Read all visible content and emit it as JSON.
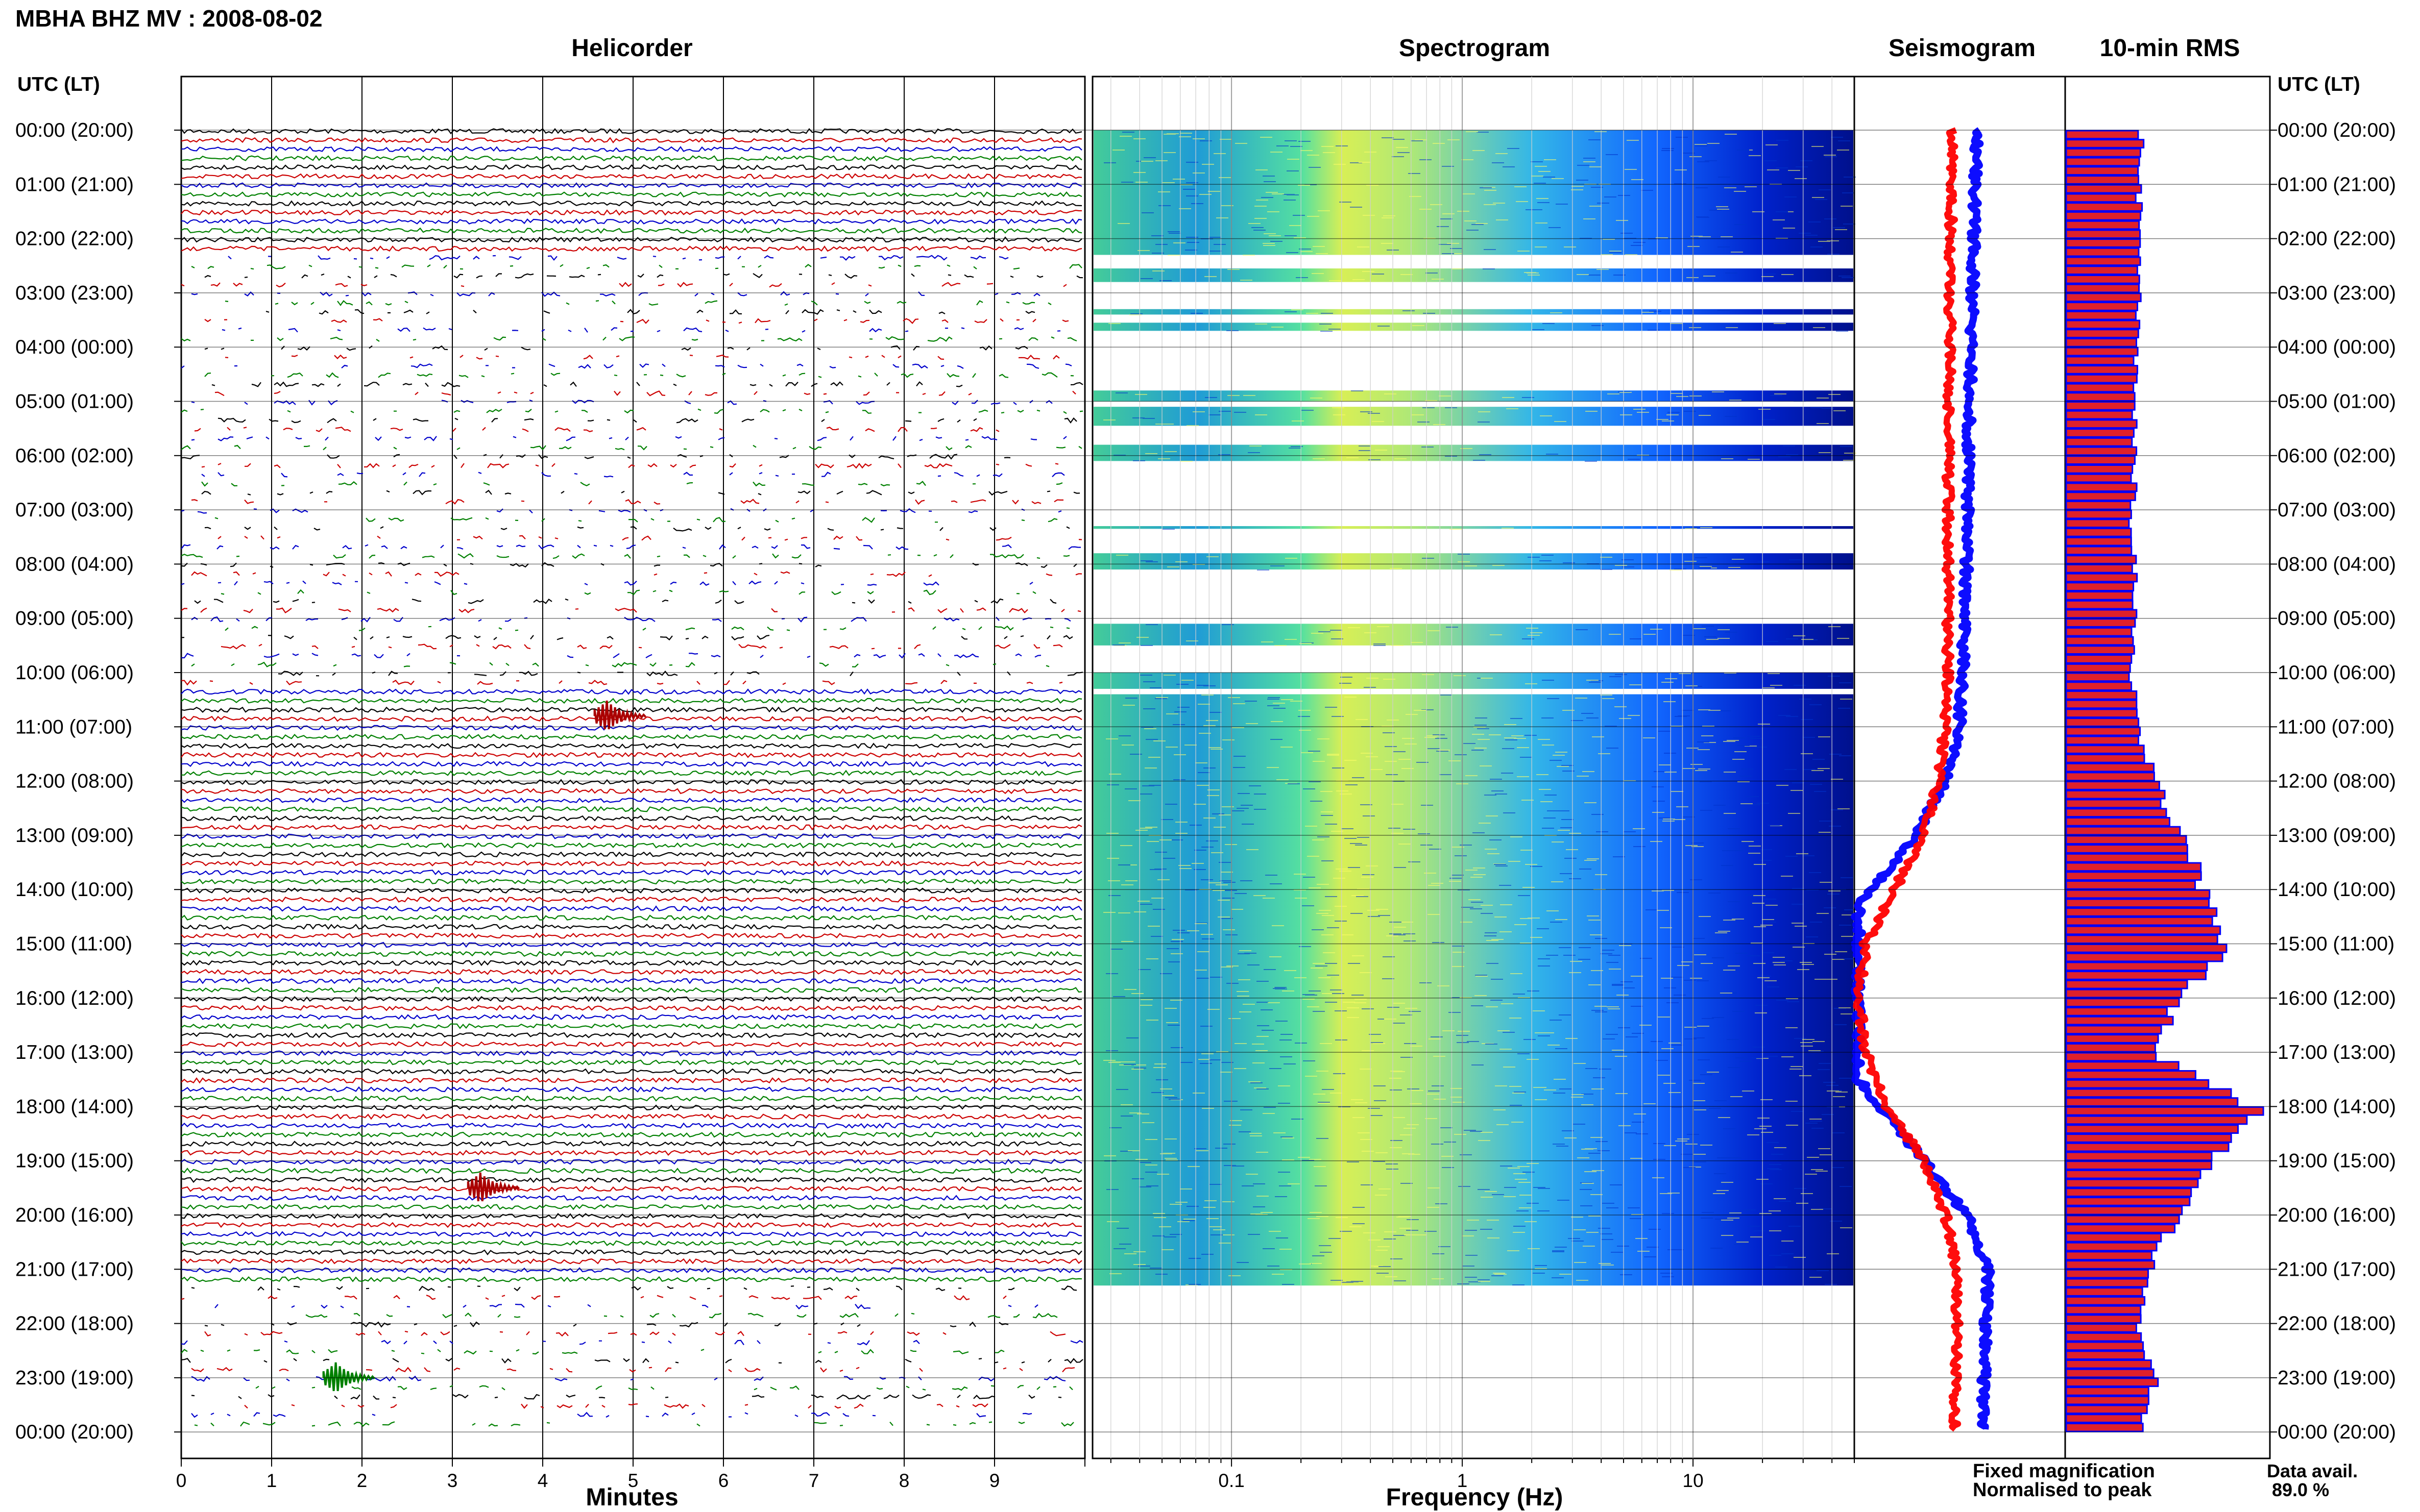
{
  "figure": {
    "title": "MBHA BHZ MV : 2008-08-02",
    "panel_titles": {
      "helicorder": "Helicorder",
      "spectrogram": "Spectrogram",
      "seismogram": "Seismogram",
      "rms": "10-min RMS"
    },
    "left_axis_header": "UTC (LT)",
    "right_axis_header": "UTC (LT)",
    "row_labels": [
      "00:00 (20:00)",
      "01:00 (21:00)",
      "02:00 (22:00)",
      "03:00 (23:00)",
      "04:00 (00:00)",
      "05:00 (01:00)",
      "06:00 (02:00)",
      "07:00 (03:00)",
      "08:00 (04:00)",
      "09:00 (05:00)",
      "10:00 (06:00)",
      "11:00 (07:00)",
      "12:00 (08:00)",
      "13:00 (09:00)",
      "14:00 (10:00)",
      "15:00 (11:00)",
      "16:00 (12:00)",
      "17:00 (13:00)",
      "18:00 (14:00)",
      "19:00 (15:00)",
      "20:00 (16:00)",
      "21:00 (17:00)",
      "22:00 (18:00)",
      "23:00 (19:00)",
      "00:00 (20:00)"
    ],
    "legend": {
      "fixed": "Fixed magnification",
      "normalised": "Normalised to peak",
      "fixed_color": "#0000ff",
      "normalised_color": "#ff0000"
    },
    "data_avail_label": "Data avail.",
    "data_avail_value": "89.0 %"
  },
  "chart_data": [
    {
      "type": "line",
      "panel": "helicorder",
      "title": "Helicorder",
      "xlabel": "Minutes",
      "x_ticks": [
        "0",
        "1",
        "2",
        "3",
        "4",
        "5",
        "6",
        "7",
        "8",
        "9"
      ],
      "xlim": [
        0,
        10
      ],
      "rows_per_hour": 6,
      "trace_colors": [
        "#000000",
        "#cc0000",
        "#0000cc",
        "#008000"
      ],
      "data_gaps_utc_hours": [
        [
          2.3,
          10.3
        ],
        [
          21.3,
          24.0
        ]
      ],
      "events": [
        {
          "utc_hour": 10.8,
          "minute": 4.8,
          "color": "#aa0000"
        },
        {
          "utc_hour": 19.5,
          "minute": 3.4,
          "color": "#aa0000"
        },
        {
          "utc_hour": 23.0,
          "minute": 1.8,
          "color": "#008000"
        }
      ]
    },
    {
      "type": "heatmap",
      "panel": "spectrogram",
      "title": "Spectrogram",
      "xlabel": "Frequency (Hz)",
      "x_scale": "log",
      "xlim": [
        0.025,
        50
      ],
      "x_ticks": [
        "0.1",
        "1",
        "10"
      ],
      "colormap": [
        "#0000aa",
        "#0033ff",
        "#00aaff",
        "#33ddcc",
        "#ddf044"
      ],
      "coverage_utc_hours": [
        [
          0,
          2.3
        ],
        [
          2.55,
          2.8
        ],
        [
          3.3,
          3.4
        ],
        [
          3.55,
          3.7
        ],
        [
          4.8,
          5.0
        ],
        [
          5.1,
          5.45
        ],
        [
          5.8,
          6.1
        ],
        [
          7.3,
          7.35
        ],
        [
          7.8,
          8.1
        ],
        [
          9.1,
          9.5
        ],
        [
          10.0,
          10.3
        ],
        [
          10.4,
          21.3
        ]
      ]
    },
    {
      "type": "line",
      "panel": "seismogram",
      "title": "Seismogram",
      "series": [
        {
          "name": "Fixed magnification",
          "color": "#0000ff",
          "utc_hour": [
            0,
            2,
            4,
            6,
            8,
            10,
            11,
            12,
            13,
            13.8,
            14.3,
            17.5,
            18.0,
            19.0,
            20.0,
            21.0,
            22.0,
            24.0
          ],
          "relative_offset": [
            0.82,
            0.8,
            0.78,
            0.76,
            0.75,
            0.72,
            0.7,
            0.6,
            0.4,
            0.15,
            0.0,
            0.0,
            0.15,
            0.45,
            0.75,
            0.9,
            0.88,
            0.86
          ]
        },
        {
          "name": "Normalised to peak",
          "color": "#ff0000",
          "utc_hour": [
            0,
            4,
            8,
            10,
            11,
            12,
            13,
            14,
            15,
            16,
            17,
            18,
            19,
            20,
            21,
            22,
            24
          ],
          "relative_offset": [
            0.65,
            0.63,
            0.62,
            0.62,
            0.6,
            0.55,
            0.45,
            0.25,
            0.05,
            0.0,
            0.05,
            0.2,
            0.45,
            0.6,
            0.68,
            0.68,
            0.67
          ]
        }
      ]
    },
    {
      "type": "bar",
      "panel": "rms",
      "title": "10-min RMS",
      "orientation": "horizontal",
      "interval_minutes": 10,
      "bar_fill": "#e0202a",
      "bar_edge": "#0000ff",
      "hourly_relative_rms": [
        0.38,
        0.37,
        0.37,
        0.36,
        0.35,
        0.35,
        0.35,
        0.33,
        0.34,
        0.35,
        0.33,
        0.37,
        0.45,
        0.6,
        0.7,
        0.8,
        0.55,
        0.45,
        1.0,
        0.72,
        0.55,
        0.4,
        0.37,
        0.45,
        0.36
      ]
    }
  ]
}
